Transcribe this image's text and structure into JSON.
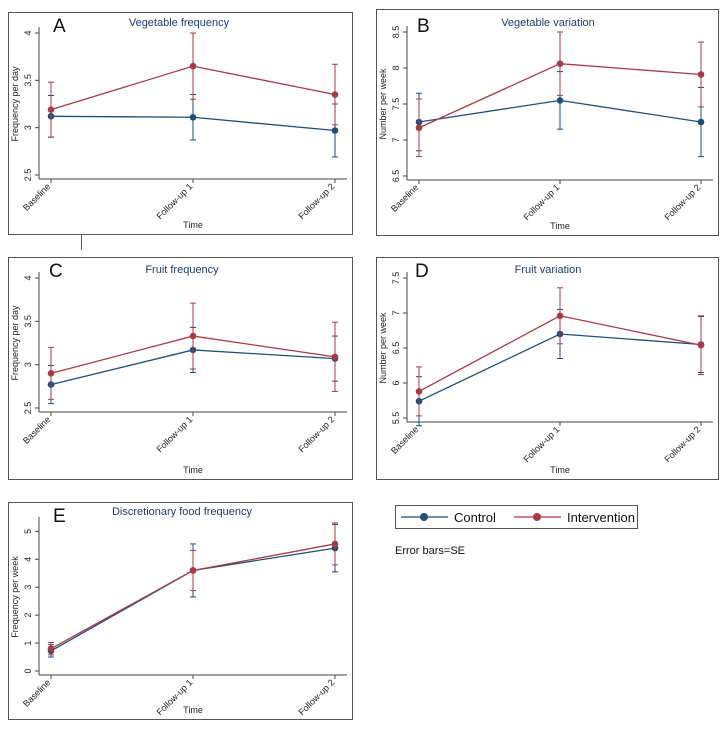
{
  "colors": {
    "control": "#1f4e79",
    "intervention": "#a83a45",
    "axis": "#444444",
    "title": "#1f3b6e"
  },
  "legend": {
    "control_label": "Control",
    "intervention_label": "Intervention"
  },
  "note": "Error bars=SE",
  "chart_data": [
    {
      "id": "A",
      "type": "line",
      "title": "Vegetable frequency",
      "xlabel": "Time",
      "ylabel": "Frequency per day",
      "categories": [
        "Baseline",
        "Follow-up 1",
        "Follow-up 2"
      ],
      "ylim": [
        2.5,
        4.0
      ],
      "yticks": [
        2.5,
        3,
        3.5,
        4
      ],
      "ytick_labels": [
        "2.5",
        "3",
        "3.5",
        "4"
      ],
      "series": [
        {
          "name": "Control",
          "values": [
            3.12,
            3.11,
            2.97
          ],
          "err": [
            0.22,
            0.24,
            0.28
          ]
        },
        {
          "name": "Intervention",
          "values": [
            3.19,
            3.65,
            3.35
          ],
          "err": [
            0.29,
            0.35,
            0.32
          ]
        }
      ]
    },
    {
      "id": "B",
      "type": "line",
      "title": "Vegetable variation",
      "xlabel": "Time",
      "ylabel": "Number per week",
      "categories": [
        "Baseline",
        "Follow-up 1",
        "Follow-up 2"
      ],
      "ylim": [
        6.5,
        8.5
      ],
      "yticks": [
        6.5,
        7,
        7.5,
        8,
        8.5
      ],
      "ytick_labels": [
        "6.5",
        "7",
        "7.5",
        "8",
        "8.5"
      ],
      "series": [
        {
          "name": "Control",
          "values": [
            7.25,
            7.55,
            7.25
          ],
          "err": [
            0.4,
            0.4,
            0.48
          ]
        },
        {
          "name": "Intervention",
          "values": [
            7.17,
            8.06,
            7.91
          ],
          "err": [
            0.4,
            0.44,
            0.45
          ]
        }
      ]
    },
    {
      "id": "C",
      "type": "line",
      "title": "Fruit frequency",
      "xlabel": "Time",
      "ylabel": "Frequency per day",
      "categories": [
        "Baseline",
        "Follow-up 1",
        "Follow-up 2"
      ],
      "ylim": [
        2.5,
        4.0
      ],
      "yticks": [
        2.5,
        3,
        3.5,
        4
      ],
      "ytick_labels": [
        "2.5",
        "3",
        "3.5",
        "4"
      ],
      "series": [
        {
          "name": "Control",
          "values": [
            2.77,
            3.17,
            3.07
          ],
          "err": [
            0.22,
            0.26,
            0.26
          ]
        },
        {
          "name": "Intervention",
          "values": [
            2.9,
            3.33,
            3.09
          ],
          "err": [
            0.3,
            0.38,
            0.4
          ]
        }
      ]
    },
    {
      "id": "D",
      "type": "line",
      "title": "Fruit variation",
      "xlabel": "Time",
      "ylabel": "Number per week",
      "categories": [
        "Baseline",
        "Follow-up 1",
        "Follow-up 2"
      ],
      "ylim": [
        5.5,
        7.5
      ],
      "yticks": [
        5.5,
        6,
        6.5,
        7,
        7.5
      ],
      "ytick_labels": [
        "5.5",
        "6",
        "6.5",
        "7",
        "7.5"
      ],
      "series": [
        {
          "name": "Control",
          "values": [
            5.74,
            6.7,
            6.55
          ],
          "err": [
            0.35,
            0.35,
            0.4
          ]
        },
        {
          "name": "Intervention",
          "values": [
            5.88,
            6.96,
            6.54
          ],
          "err": [
            0.35,
            0.4,
            0.42
          ]
        }
      ]
    },
    {
      "id": "E",
      "type": "line",
      "title": "Discretionary food frequency",
      "xlabel": "Time",
      "ylabel": "Frequency per week",
      "categories": [
        "Baseline",
        "Follow-up 1",
        "Follow-up 2"
      ],
      "ylim": [
        0,
        5.3
      ],
      "yticks": [
        0,
        1,
        2,
        3,
        4,
        5
      ],
      "ytick_labels": [
        "0",
        "1",
        "2",
        "3",
        "4",
        "5"
      ],
      "series": [
        {
          "name": "Control",
          "values": [
            0.72,
            3.6,
            4.4
          ],
          "err": [
            0.22,
            0.95,
            0.85
          ]
        },
        {
          "name": "Intervention",
          "values": [
            0.8,
            3.6,
            4.55
          ],
          "err": [
            0.22,
            0.72,
            0.75
          ]
        }
      ]
    }
  ]
}
